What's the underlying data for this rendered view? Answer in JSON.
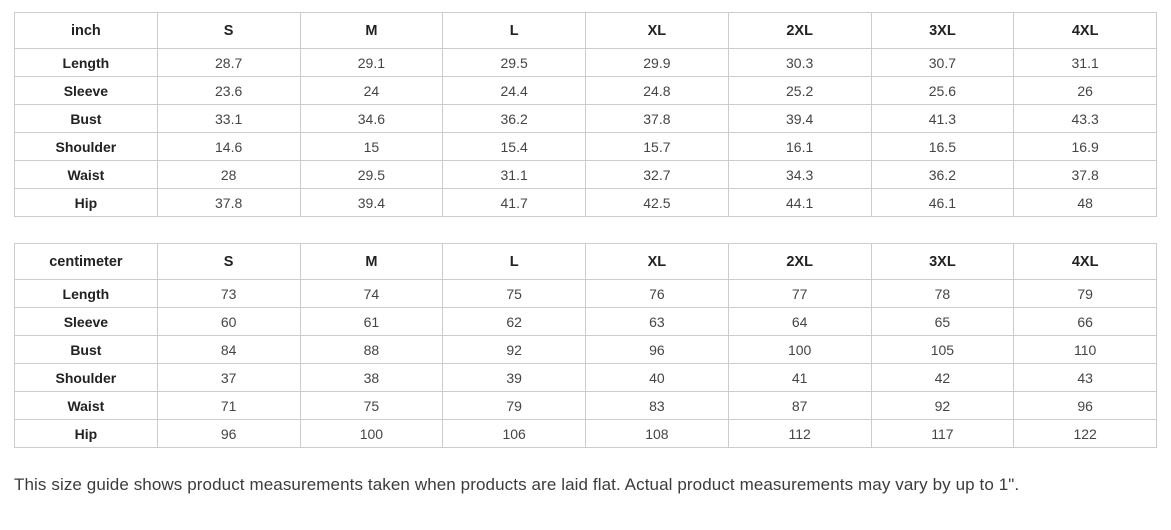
{
  "tables": [
    {
      "unit": "inch",
      "sizes": [
        "S",
        "M",
        "L",
        "XL",
        "2XL",
        "3XL",
        "4XL"
      ],
      "rows": [
        {
          "label": "Length",
          "values": [
            "28.7",
            "29.1",
            "29.5",
            "29.9",
            "30.3",
            "30.7",
            "31.1"
          ]
        },
        {
          "label": "Sleeve",
          "values": [
            "23.6",
            "24",
            "24.4",
            "24.8",
            "25.2",
            "25.6",
            "26"
          ]
        },
        {
          "label": "Bust",
          "values": [
            "33.1",
            "34.6",
            "36.2",
            "37.8",
            "39.4",
            "41.3",
            "43.3"
          ]
        },
        {
          "label": "Shoulder",
          "values": [
            "14.6",
            "15",
            "15.4",
            "15.7",
            "16.1",
            "16.5",
            "16.9"
          ]
        },
        {
          "label": "Waist",
          "values": [
            "28",
            "29.5",
            "31.1",
            "32.7",
            "34.3",
            "36.2",
            "37.8"
          ]
        },
        {
          "label": "Hip",
          "values": [
            "37.8",
            "39.4",
            "41.7",
            "42.5",
            "44.1",
            "46.1",
            "48"
          ]
        }
      ]
    },
    {
      "unit": "centimeter",
      "sizes": [
        "S",
        "M",
        "L",
        "XL",
        "2XL",
        "3XL",
        "4XL"
      ],
      "rows": [
        {
          "label": "Length",
          "values": [
            "73",
            "74",
            "75",
            "76",
            "77",
            "78",
            "79"
          ]
        },
        {
          "label": "Sleeve",
          "values": [
            "60",
            "61",
            "62",
            "63",
            "64",
            "65",
            "66"
          ]
        },
        {
          "label": "Bust",
          "values": [
            "84",
            "88",
            "92",
            "96",
            "100",
            "105",
            "110"
          ]
        },
        {
          "label": "Shoulder",
          "values": [
            "37",
            "38",
            "39",
            "40",
            "41",
            "42",
            "43"
          ]
        },
        {
          "label": "Waist",
          "values": [
            "71",
            "75",
            "79",
            "83",
            "87",
            "92",
            "96"
          ]
        },
        {
          "label": "Hip",
          "values": [
            "96",
            "100",
            "106",
            "108",
            "112",
            "117",
            "122"
          ]
        }
      ]
    }
  ],
  "footer": {
    "note": "This size guide shows product measurements taken when products are laid flat. Actual product measurements may vary by up to 1\"."
  }
}
